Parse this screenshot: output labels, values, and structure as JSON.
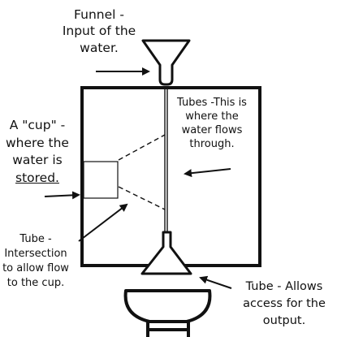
{
  "labels": {
    "funnel": [
      "Funnel -",
      "Input of the",
      "water."
    ],
    "tubes": [
      "Tubes -This is",
      "where the",
      "water flows",
      "through."
    ],
    "cup": [
      "A \"cup\" -",
      "where the",
      "water is",
      "stored."
    ],
    "intersection": [
      "Tube -",
      "Intersection",
      "to allow flow",
      "to the cup."
    ],
    "output": [
      "Tube - Allows",
      "access for the",
      "output."
    ]
  },
  "colors": {
    "ink": "#111111",
    "background": "#ffffff"
  }
}
